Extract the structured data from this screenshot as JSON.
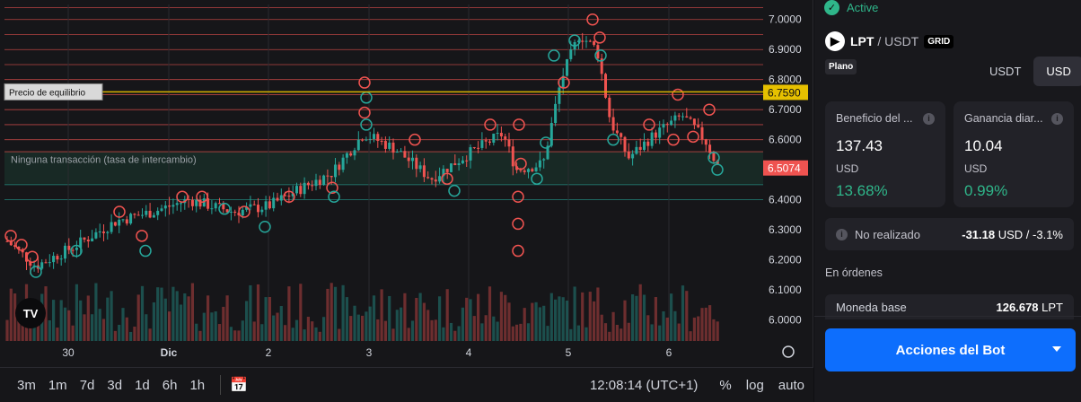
{
  "status": {
    "label": "Active",
    "icon": "check-icon"
  },
  "pair": {
    "base": "LPT",
    "sep": " / ",
    "quote": "USDT",
    "type": "GRID",
    "mode": "Plano",
    "logo": "livepeer-logo"
  },
  "currency_toggle": {
    "options": [
      "USDT",
      "USD"
    ],
    "selected": "USD"
  },
  "cards": [
    {
      "label": "Beneficio del ...",
      "value": "137.43",
      "unit": "USD",
      "pct": "13.68%"
    },
    {
      "label": "Ganancia diar...",
      "value": "10.04",
      "unit": "USD",
      "pct": "0.99%"
    }
  ],
  "unrealized": {
    "label": "No realizado",
    "value": "-31.18",
    "unit": "USD",
    "sep": " / ",
    "pct": "-3.1%"
  },
  "orders_section": {
    "title": "En órdenes",
    "base_label": "Moneda base",
    "base_value": "126.678",
    "base_unit": "LPT"
  },
  "bot_button": {
    "label": "Acciones del Bot"
  },
  "toolbar": {
    "timeframes": [
      "3m",
      "1m",
      "7d",
      "3d",
      "1d",
      "6h",
      "1h"
    ],
    "time": "12:08:14 (UTC+1)",
    "percent": "%",
    "log": "log",
    "auto": "auto"
  },
  "chart_data": {
    "type": "candlestick",
    "pair_watermark": "TV",
    "y_ticks": [
      "7.0000",
      "6.9000",
      "6.8000",
      "6.7000",
      "6.6000",
      "6.5000",
      "6.4000",
      "6.3000",
      "6.2000",
      "6.1000",
      "6.0000"
    ],
    "x_ticks": [
      "30",
      "Dic",
      "2",
      "3",
      "4",
      "5",
      "6"
    ],
    "ylim": [
      5.93,
      7.05
    ],
    "equilibrium": {
      "label": "Precio de equilibrio",
      "value": 6.759,
      "tag": "6.7590"
    },
    "current_price": {
      "value": 6.5074,
      "tag": "6.5074"
    },
    "no_trade_zone": {
      "label": "Ninguna transacción (tasa de intercambio)",
      "low": 6.45,
      "high": 6.56
    },
    "grid_levels": [
      7.04,
      7.0,
      6.95,
      6.9,
      6.85,
      6.8,
      6.75,
      6.7,
      6.65,
      6.6,
      6.56,
      6.45,
      6.4
    ],
    "colors": {
      "up": "#26a69a",
      "down": "#ef5350",
      "grid": "#ef5350",
      "equilibrium": "#d4b000",
      "zone": "#1c3a30"
    }
  }
}
